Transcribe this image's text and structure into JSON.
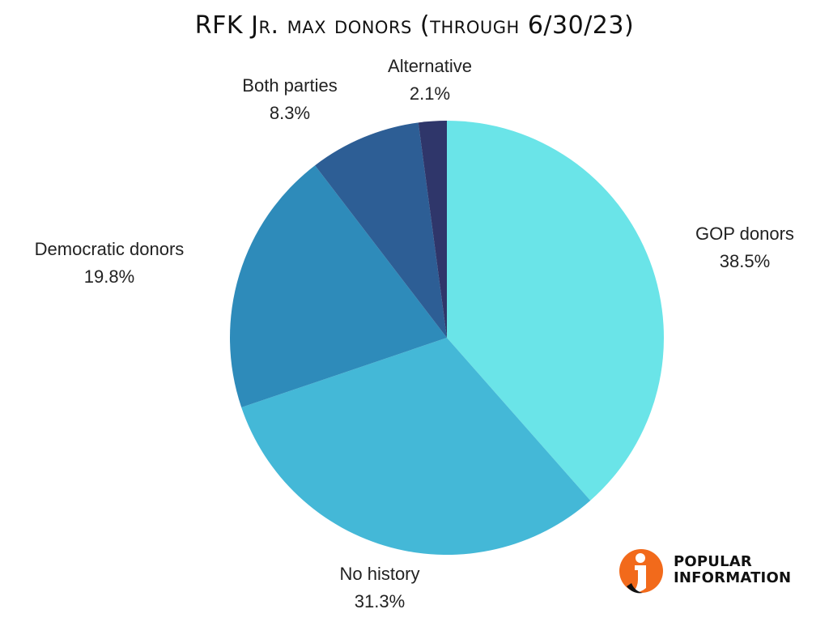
{
  "chart_data": {
    "type": "pie",
    "title": "RFK Jr. max donors (through 6/30/23)",
    "slices": [
      {
        "label": "GOP donors",
        "value": 38.5,
        "value_label": "38.5%",
        "color": "#6ae4e8"
      },
      {
        "label": "No history",
        "value": 31.3,
        "value_label": "31.3%",
        "color": "#44b8d7"
      },
      {
        "label": "Democratic donors",
        "value": 19.8,
        "value_label": "19.8%",
        "color": "#2e8bba"
      },
      {
        "label": "Both parties",
        "value": 8.3,
        "value_label": "8.3%",
        "color": "#2d5e95"
      },
      {
        "label": "Alternative",
        "value": 2.1,
        "value_label": "2.1%",
        "color": "#2f366a"
      }
    ],
    "start": "12 o'clock",
    "direction": "clockwise"
  },
  "logo": {
    "line1": "POPULAR",
    "line2": "INFORMATION",
    "accent_color": "#f26a1b"
  }
}
